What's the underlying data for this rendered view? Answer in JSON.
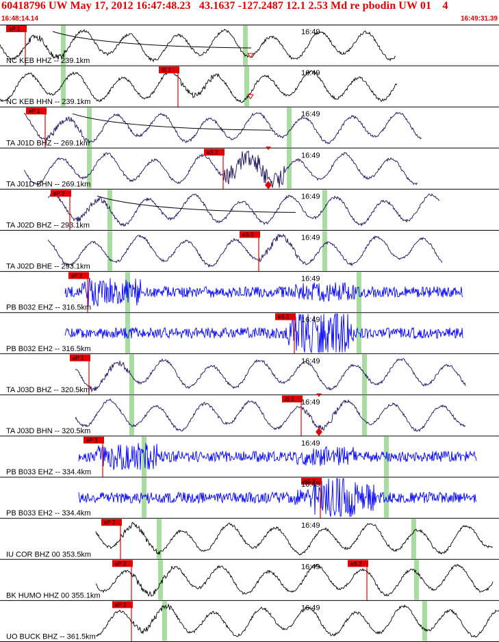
{
  "header": {
    "title": "60418796 UW May 17, 2012 16:47:48.23   43.1637 -127.2487 12.1 2.53 Md re pbodin UW 01    4",
    "time_start": "16:48:14.14",
    "time_end": "16:49:31.39"
  },
  "colors": {
    "header_red": "#e00000",
    "pick_red": "#e00000",
    "window_green": "#a8dca0",
    "trace_black": "#000000",
    "trace_purple": "#1c0a5a",
    "trace_blue": "#0000ff"
  },
  "traces": [
    {
      "label": "NC KEB HHZ -- 239.1km",
      "minute_label": "16:49",
      "pick": "eP 1",
      "color": "black",
      "style": "lp",
      "coda": "curve",
      "extra": "down-triangle"
    },
    {
      "label": "NC KEB HHN -- 239.1km",
      "minute_label": "16:49",
      "pick": "iS 1",
      "color": "black",
      "style": "lp",
      "extra": "down-triangle"
    },
    {
      "label": "TA J01D BHZ -- 269.1km",
      "minute_label": "16:49",
      "pick": "eP 1",
      "color": "purple",
      "style": "lp",
      "coda": "curve"
    },
    {
      "label": "TA J01D BHN -- 269.1km",
      "minute_label": "16:49",
      "pick": "eS 2",
      "color": "purple",
      "style": "burst",
      "extra": "diamond"
    },
    {
      "label": "TA J02D BHZ -- 293.1km",
      "minute_label": "16:49",
      "pick": "eP 2",
      "color": "purple",
      "style": "lp",
      "coda": "curve"
    },
    {
      "label": "TA J02D BHE -- 293.1km",
      "minute_label": "16:49",
      "pick": "eS 2",
      "color": "purple",
      "style": "lp"
    },
    {
      "label": "PB B032 EHZ -- 316.5km",
      "minute_label": "16:49",
      "pick": "eP 2",
      "color": "blue",
      "style": "hf"
    },
    {
      "label": "PB B032 EH2 -- 316.5km",
      "minute_label": "16:49",
      "pick": "eS 2",
      "color": "blue",
      "style": "hf"
    },
    {
      "label": "TA J03D BHZ -- 320.5km",
      "minute_label": "16:49",
      "pick": "eP 1",
      "color": "purple",
      "style": "lp"
    },
    {
      "label": "TA J03D BHN -- 320.5km",
      "minute_label": "16:49",
      "pick": "iS 1",
      "color": "purple",
      "style": "lp",
      "extra": "diamond"
    },
    {
      "label": "PB B033 EHZ -- 334.4km",
      "minute_label": "16:49",
      "pick": "eP 3",
      "color": "blue",
      "style": "hf"
    },
    {
      "label": "PB B033 EH2 -- 334.4km",
      "minute_label": "16:49",
      "pick": "eS 3",
      "color": "blue",
      "style": "hf"
    },
    {
      "label": "IU COR BHZ 00 353.5km",
      "minute_label": "16:49",
      "pick": "eP 2",
      "color": "black",
      "style": "lp"
    },
    {
      "label": "BK HUMO HHZ 00 355.1km",
      "minute_label": "16:49",
      "pick": "eP 2",
      "pick2": "eS 2",
      "color": "black",
      "style": "lp"
    },
    {
      "label": "UO BUCK BHZ -- 361.5km",
      "minute_label": "16:49",
      "pick": "eP 2",
      "color": "black",
      "style": "lp"
    }
  ]
}
